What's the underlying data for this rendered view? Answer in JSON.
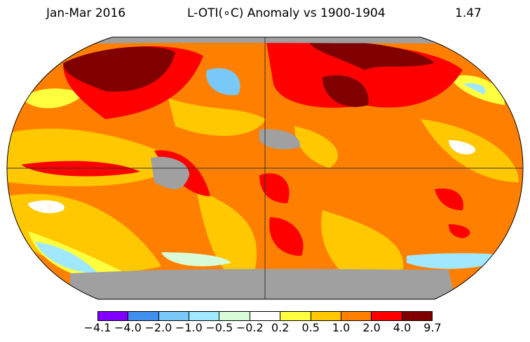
{
  "header": {
    "period": "Jan-Mar 2016",
    "title": "L-OTI(∘C) Anomaly vs 1900-1904",
    "global_mean": "1.47"
  },
  "colorbar": {
    "colors": [
      "#8000ff",
      "#4090f0",
      "#78c8f8",
      "#a0e8ff",
      "#d8fcd8",
      "#ffffff",
      "#ffff40",
      "#ffc800",
      "#ff8000",
      "#ff0000",
      "#800000"
    ],
    "ticks": [
      "−4.1",
      "−4.0",
      "−2.0",
      "−1.0",
      "−0.5",
      "−0.2",
      "0.2",
      "0.5",
      "1.0",
      "2.0",
      "4.0",
      "9.7"
    ]
  },
  "map": {
    "no_data_color": "#a0a0a0",
    "base_color": "#ff8000"
  }
}
